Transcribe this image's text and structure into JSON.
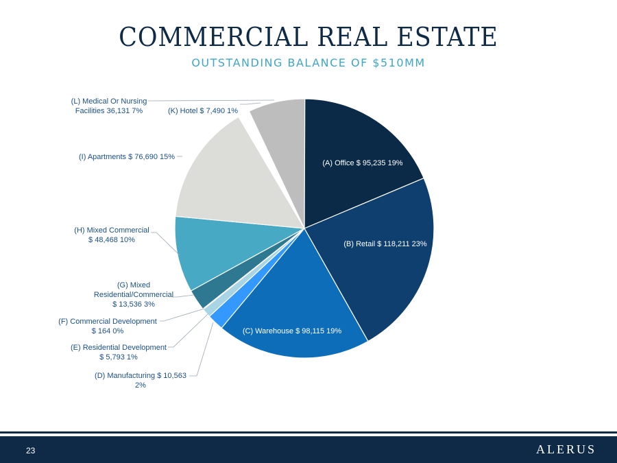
{
  "title": "COMMERCIAL REAL ESTATE",
  "subtitle": "OUTSTANDING BALANCE OF $510MM",
  "page_number": "23",
  "logo_text": "ALERUS",
  "chart_data": {
    "type": "pie",
    "title": "",
    "slices": [
      {
        "key": "A",
        "label_lines": [
          "(A) Office $ 95,235  19%"
        ],
        "value": 95235,
        "percent": "19%",
        "color": "#0b2a47",
        "label_color": "#ffffff"
      },
      {
        "key": "B",
        "label_lines": [
          "(B) Retail $ 118,211  23%"
        ],
        "value": 118211,
        "percent": "23%",
        "color": "#0e3f6e",
        "label_color": "#ffffff"
      },
      {
        "key": "C",
        "label_lines": [
          "(C) Warehouse $ 98,115  19%"
        ],
        "value": 98115,
        "percent": "19%",
        "color": "#0d6db8",
        "label_color": "#ffffff"
      },
      {
        "key": "D",
        "label_lines": [
          "(D) Manufacturing $ 10,563",
          "2%"
        ],
        "value": 10563,
        "percent": "2%",
        "color": "#3399ff",
        "label_color": "#1b4f8a"
      },
      {
        "key": "E",
        "label_lines": [
          "(E) Residential Development",
          "$ 5,793  1%"
        ],
        "value": 5793,
        "percent": "1%",
        "color": "#a9d4e4",
        "label_color": "#1b4f8a"
      },
      {
        "key": "F",
        "label_lines": [
          "(F) Commercial Development",
          "$ 164  0%"
        ],
        "value": 164,
        "percent": "0%",
        "color": "#ffffff",
        "label_color": "#1b4f8a"
      },
      {
        "key": "G",
        "label_lines": [
          "(G) Mixed",
          "Residential/Commercial",
          "$ 13,536  3%"
        ],
        "value": 13536,
        "percent": "3%",
        "color": "#2f7892",
        "label_color": "#1b4f8a"
      },
      {
        "key": "H",
        "label_lines": [
          "(H) Mixed Commercial",
          "$ 48,468  10%"
        ],
        "value": 48468,
        "percent": "10%",
        "color": "#48a9c5",
        "label_color": "#1b4f8a"
      },
      {
        "key": "I",
        "label_lines": [
          "(I) Apartments $ 76,690  15%"
        ],
        "value": 76690,
        "percent": "15%",
        "color": "#dcdcd8",
        "label_color": "#1b4f8a"
      },
      {
        "key": "K",
        "label_lines": [
          "(K) Hotel $ 7,490  1%"
        ],
        "value": 7490,
        "percent": "1%",
        "color": "#ffffff",
        "label_color": "#1b4f8a"
      },
      {
        "key": "L",
        "label_lines": [
          "(L) Medical Or Nursing",
          "Facilities  36,131  7%"
        ],
        "value": 36131,
        "percent": "7%",
        "color": "#bdbdbd",
        "label_color": "#1b4f8a"
      }
    ]
  }
}
